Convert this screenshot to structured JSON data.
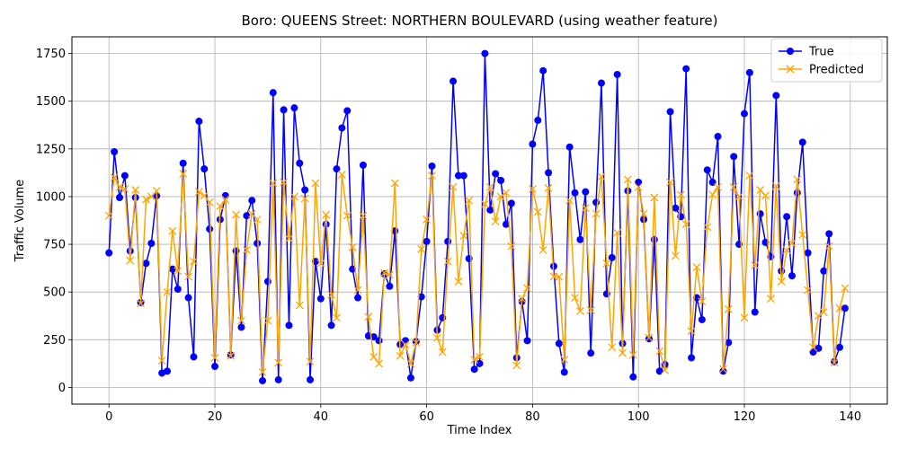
{
  "chart_data": {
    "type": "line",
    "title": "Boro: QUEENS Street: NORTHERN BOULEVARD (using weather feature)",
    "xlabel": "Time Index",
    "ylabel": "Traffic Volume",
    "xlim": [
      -7,
      147
    ],
    "ylim": [
      -87.5,
      1837.5
    ],
    "xticks": [
      0,
      20,
      40,
      60,
      80,
      100,
      120,
      140
    ],
    "yticks": [
      0,
      250,
      500,
      750,
      1000,
      1250,
      1500,
      1750
    ],
    "grid": true,
    "legend_position": "upper right",
    "series": [
      {
        "name": "True",
        "color": "#0000ff",
        "marker": "circle",
        "values": [
          705,
          1235,
          995,
          1110,
          715,
          995,
          445,
          650,
          755,
          1005,
          75,
          85,
          620,
          515,
          1175,
          470,
          160,
          1395,
          1145,
          830,
          110,
          880,
          1005,
          170,
          715,
          315,
          900,
          980,
          755,
          35,
          555,
          1545,
          40,
          1455,
          325,
          1465,
          1175,
          1035,
          40,
          660,
          465,
          855,
          325,
          1145,
          1360,
          1450,
          620,
          470,
          1165,
          270,
          265,
          245,
          595,
          530,
          820,
          225,
          245,
          50,
          240,
          475,
          765,
          1160,
          300,
          365,
          765,
          1605,
          1110,
          1110,
          675,
          95,
          125,
          1750,
          930,
          1120,
          1085,
          855,
          965,
          155,
          450,
          245,
          1275,
          1400,
          1660,
          1125,
          635,
          230,
          80,
          1260,
          1020,
          775,
          1025,
          180,
          970,
          1595,
          490,
          680,
          1640,
          230,
          1030,
          55,
          1075,
          880,
          255,
          775,
          85,
          120,
          1445,
          940,
          895,
          1670,
          155,
          470,
          355,
          1140,
          1075,
          1315,
          85,
          235,
          1210,
          750,
          1435,
          1650,
          395,
          910,
          760,
          685,
          1530,
          610,
          895,
          585,
          1020,
          1285,
          705,
          185,
          205,
          610,
          805,
          135,
          210,
          415
        ]
      },
      {
        "name": "Predicted",
        "color": "#ffa500",
        "marker": "x",
        "values": [
          900,
          1100,
          1050,
          1040,
          665,
          1035,
          440,
          985,
          1000,
          1030,
          140,
          500,
          820,
          610,
          1120,
          580,
          660,
          1025,
          1005,
          970,
          155,
          950,
          985,
          165,
          905,
          350,
          720,
          910,
          880,
          80,
          350,
          1070,
          130,
          1075,
          780,
          1000,
          430,
          990,
          135,
          1070,
          650,
          905,
          485,
          365,
          1115,
          900,
          735,
          510,
          900,
          370,
          160,
          125,
          600,
          590,
          1070,
          165,
          225,
          125,
          235,
          725,
          880,
          1110,
          260,
          185,
          660,
          1050,
          555,
          795,
          980,
          145,
          160,
          960,
          1050,
          870,
          1000,
          1020,
          740,
          115,
          465,
          520,
          1040,
          920,
          720,
          1045,
          580,
          580,
          145,
          980,
          470,
          400,
          940,
          405,
          910,
          1105,
          650,
          210,
          810,
          180,
          1090,
          170,
          1050,
          910,
          260,
          995,
          190,
          90,
          1075,
          690,
          1010,
          855,
          295,
          630,
          450,
          840,
          1010,
          1050,
          95,
          410,
          1050,
          1000,
          365,
          1110,
          640,
          1035,
          1005,
          465,
          1055,
          555,
          720,
          755,
          1090,
          800,
          510,
          210,
          375,
          395,
          740,
          130,
          415,
          520
        ]
      }
    ]
  }
}
